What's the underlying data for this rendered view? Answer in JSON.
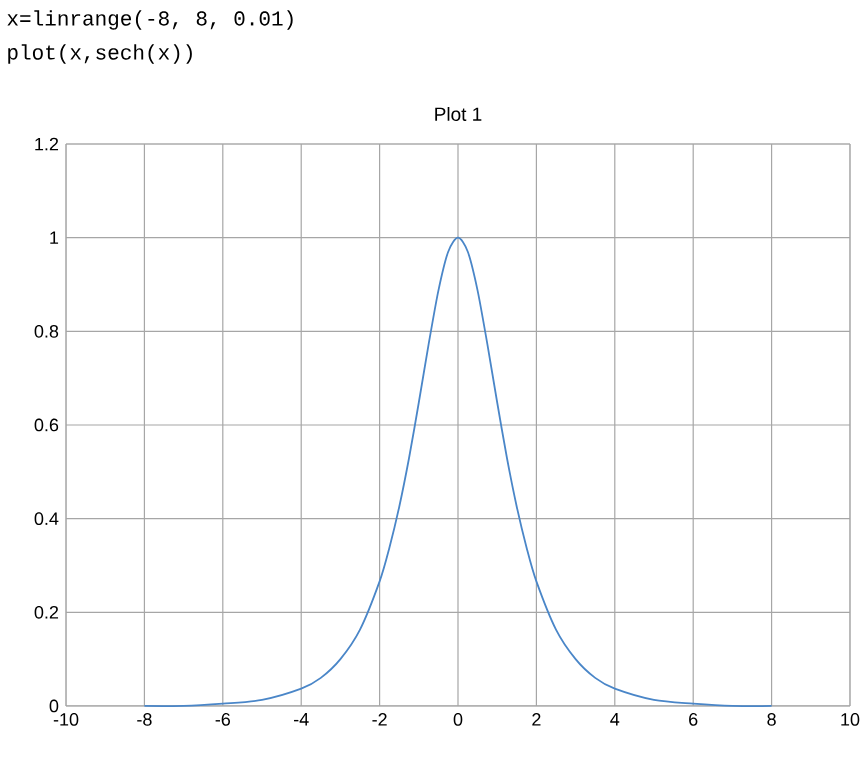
{
  "chart_data": {
    "type": "line",
    "title": "Plot 1",
    "annotations": [
      "x=linrange(-8, 8, 0.01)",
      "plot(x,sech(x))"
    ],
    "x": [
      -8,
      -7,
      -6,
      -5,
      -4,
      -3.5,
      -3,
      -2.5,
      -2,
      -1.75,
      -1.5,
      -1.25,
      -1,
      -0.75,
      -0.5,
      -0.25,
      0,
      0.25,
      0.5,
      0.75,
      1,
      1.25,
      1.5,
      1.75,
      2,
      2.5,
      3,
      3.5,
      4,
      5,
      6,
      7,
      8
    ],
    "series": [
      {
        "color": "#4a86c8",
        "values": [
          0.0,
          0.0,
          0.005,
          0.013,
          0.037,
          0.06,
          0.1,
          0.163,
          0.266,
          0.338,
          0.425,
          0.529,
          0.648,
          0.772,
          0.887,
          0.97,
          1.0,
          0.97,
          0.887,
          0.772,
          0.648,
          0.529,
          0.425,
          0.338,
          0.266,
          0.163,
          0.1,
          0.06,
          0.037,
          0.013,
          0.005,
          0.0,
          0.0
        ]
      }
    ],
    "xlim": [
      -10,
      10
    ],
    "xticks": [
      -10,
      -8,
      -6,
      -4,
      -2,
      0,
      2,
      4,
      6,
      8,
      10
    ],
    "ylim": [
      0,
      1.2
    ],
    "yticks": [
      0,
      0.2,
      0.4,
      0.6,
      0.8,
      1,
      1.2
    ],
    "grid": true,
    "marker": "none",
    "line_style": "solid"
  }
}
